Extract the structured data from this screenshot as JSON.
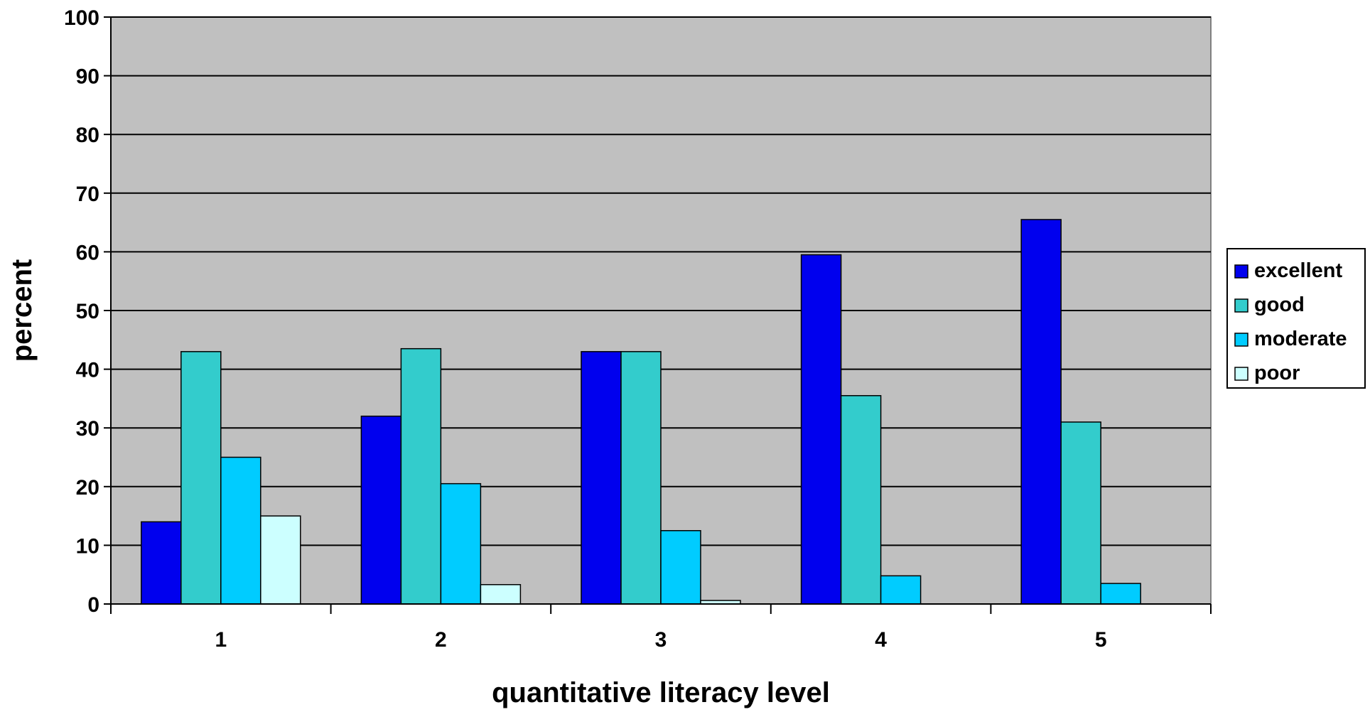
{
  "chart_data": {
    "type": "bar",
    "title": "",
    "xlabel": "quantitative literacy level",
    "ylabel": "percent",
    "categories": [
      "1",
      "2",
      "3",
      "4",
      "5"
    ],
    "ylim": [
      0,
      100
    ],
    "yticks": [
      "0",
      "10",
      "20",
      "30",
      "40",
      "50",
      "60",
      "70",
      "80",
      "90",
      "100"
    ],
    "grid": true,
    "legend_position": "right",
    "series": [
      {
        "name": "excellent",
        "color": "#0000EE",
        "values": [
          14,
          32,
          43,
          59.5,
          65.5
        ]
      },
      {
        "name": "good",
        "color": "#33CCCC",
        "values": [
          43,
          43.5,
          43,
          35.5,
          31
        ]
      },
      {
        "name": "moderate",
        "color": "#00CCFF",
        "values": [
          25,
          20.5,
          12.5,
          4.8,
          3.5
        ]
      },
      {
        "name": "poor",
        "color": "#CCFFFF",
        "values": [
          15,
          3.3,
          0.6,
          0,
          0
        ]
      }
    ],
    "plot_background": "#C0C0C0"
  }
}
